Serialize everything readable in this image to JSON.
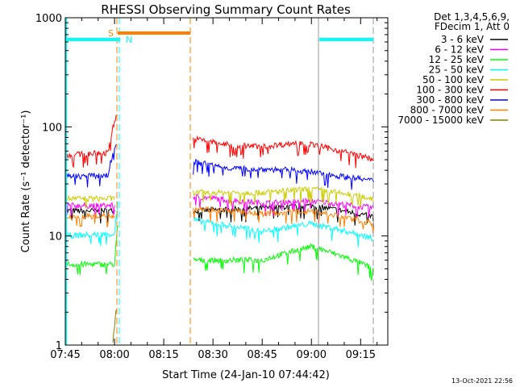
{
  "chart_data": {
    "type": "line",
    "title": "RHESSI Observing Summary Count Rates",
    "xlabel": "Start Time (24-Jan-10 07:44:42)",
    "ylabel": "Count Rate (s⁻¹ detector⁻¹)",
    "ylim": [
      1,
      1000
    ],
    "yscale": "log",
    "xlim_minutes_after_0745": [
      0,
      100
    ],
    "xticks": [
      "07:45",
      "08:00",
      "08:15",
      "08:30",
      "08:45",
      "09:00",
      "09:15"
    ],
    "yticks": [
      "1",
      "10",
      "100",
      "1000"
    ],
    "legend_header": [
      "Det 1,3,4,5,6,9,",
      "FDecim 1, Att 0"
    ],
    "legend_position": "right-outside",
    "series": [
      {
        "name": "3 - 6 keV",
        "color": "#000000",
        "pre": [
          [
            0,
            17
          ],
          [
            15,
            17
          ]
        ],
        "post": [
          [
            39,
            17
          ],
          [
            60,
            18
          ],
          [
            75,
            19
          ],
          [
            94,
            15
          ]
        ]
      },
      {
        "name": "6 - 12 keV",
        "color": "#ff00ff",
        "pre": [
          [
            0,
            19
          ],
          [
            15,
            19
          ]
        ],
        "post": [
          [
            39,
            23
          ],
          [
            60,
            20
          ],
          [
            75,
            21
          ],
          [
            94,
            18
          ]
        ]
      },
      {
        "name": "12 - 25 keV",
        "color": "#00ff00",
        "pre": [
          [
            0,
            5.5
          ],
          [
            15,
            5.5
          ],
          [
            16,
            12
          ]
        ],
        "post": [
          [
            39,
            6
          ],
          [
            60,
            6
          ],
          [
            75,
            8
          ],
          [
            94,
            5
          ]
        ]
      },
      {
        "name": "25 - 50 keV",
        "color": "#00ffff",
        "pre": [
          [
            0,
            10
          ],
          [
            15,
            10.5
          ],
          [
            16,
            20
          ]
        ],
        "post": [
          [
            39,
            14
          ],
          [
            60,
            11
          ],
          [
            75,
            13
          ],
          [
            94,
            9.5
          ]
        ]
      },
      {
        "name": "50 - 100 keV",
        "color": "#cccc00",
        "pre": [
          [
            0,
            22
          ],
          [
            15,
            22
          ]
        ],
        "post": [
          [
            39,
            25
          ],
          [
            60,
            25
          ],
          [
            75,
            27
          ],
          [
            94,
            22
          ]
        ]
      },
      {
        "name": "100 - 300 keV",
        "color": "#ff0000",
        "pre": [
          [
            0,
            55
          ],
          [
            13,
            58
          ],
          [
            15.5,
            125
          ]
        ],
        "post": [
          [
            39,
            78
          ],
          [
            50,
            68
          ],
          [
            60,
            66
          ],
          [
            72,
            72
          ],
          [
            94,
            50
          ]
        ]
      },
      {
        "name": "300 - 800 keV",
        "color": "#0000ff",
        "pre": [
          [
            0,
            35
          ],
          [
            13,
            36
          ],
          [
            15.5,
            70
          ]
        ],
        "post": [
          [
            39,
            48
          ],
          [
            50,
            42
          ],
          [
            70,
            40
          ],
          [
            94,
            32
          ]
        ]
      },
      {
        "name": "800 - 7000 keV",
        "color": "#ff8000",
        "pre": [
          [
            0,
            15
          ],
          [
            15,
            15.5
          ]
        ],
        "post": [
          [
            39,
            18
          ],
          [
            60,
            16
          ],
          [
            75,
            17
          ],
          [
            94,
            13
          ]
        ]
      },
      {
        "name": "7000 - 15000 keV",
        "color": "#808000",
        "pre": [
          [
            14.5,
            1
          ],
          [
            15.5,
            2
          ]
        ],
        "post": []
      }
    ],
    "annotations": {
      "saa_label": "S",
      "night_label": "N"
    },
    "footer_timestamp": "13-Oct-2021 22:56"
  }
}
